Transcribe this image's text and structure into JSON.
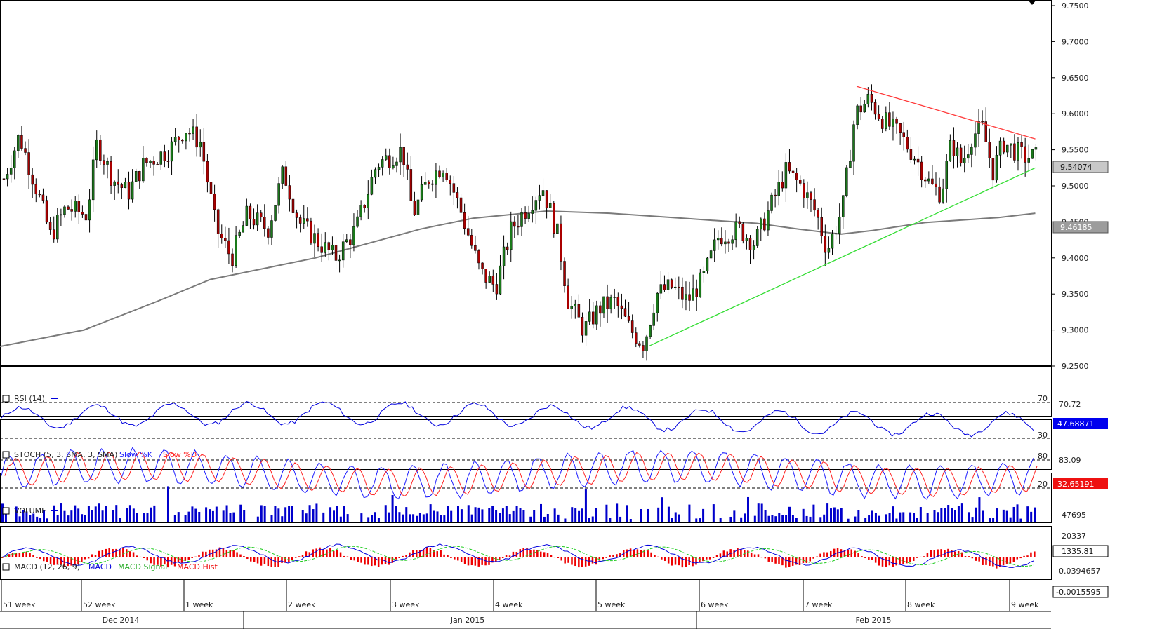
{
  "chart_data": {
    "type": "candlestick",
    "price_panel": {
      "y_ticks": [
        "9.7500",
        "9.7000",
        "9.6500",
        "9.6000",
        "9.5500",
        "9.5000",
        "9.4500",
        "9.4000",
        "9.3500",
        "9.3000",
        "9.2500"
      ],
      "y_min": 9.25,
      "y_max": 9.75,
      "last_price_label": "9.54074",
      "ma_label": "9.46185",
      "trendlines": [
        {
          "name": "resistance",
          "color": "#ff3b3b",
          "from": [
            0.815,
            9.638
          ],
          "to": [
            0.985,
            9.565
          ]
        },
        {
          "name": "support",
          "color": "#33dd33",
          "from": [
            0.618,
            9.278
          ],
          "to": [
            0.985,
            9.525
          ]
        }
      ]
    },
    "rsi_panel": {
      "title": "RSI (14)",
      "levels": [
        "70",
        "30"
      ],
      "value_labels": [
        "70.72",
        "47.68871"
      ]
    },
    "stoch_panel": {
      "title": "STOCH (5, 3, SMA, 3, SMA)",
      "legend": [
        "Slow %K",
        "Slow %D"
      ],
      "levels": [
        "80",
        "20"
      ],
      "value_labels": [
        "83.09",
        "32.65191"
      ]
    },
    "volume_panel": {
      "title": "VOLUME",
      "tick_labels": [
        "47695",
        "20337"
      ],
      "value_label": "1335.81"
    },
    "macd_panel": {
      "title": "MACD (12, 26, 9)",
      "legend": [
        "MACD",
        "MACD Signal",
        "MACD Hist"
      ],
      "tick_labels": [
        "0.0394657"
      ],
      "value_label": "-0.0015595"
    },
    "x_axis": {
      "weeks": [
        "51 week",
        "52 week",
        "1 week",
        "2 week",
        "3 week",
        "4 week",
        "5 week",
        "6 week",
        "7 week",
        "8 week",
        "9 week"
      ],
      "months": [
        "Dec 2014",
        "Jan 2015",
        "Feb 2015"
      ]
    }
  },
  "colors": {
    "up": "#1a7a1a",
    "down": "#aa0000",
    "ma": "#7a7a7a",
    "rsi": "#0000dd",
    "k": "#1a1aff",
    "d": "#ff2222",
    "volume": "#0000cc",
    "macd": "#0000dd",
    "signal": "#22cc22",
    "hist": "#ee0000"
  }
}
